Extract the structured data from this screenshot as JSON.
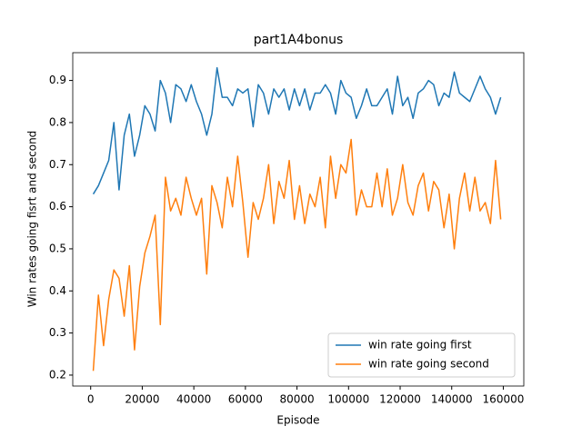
{
  "chart_data": {
    "type": "line",
    "title": "part1A4bonus",
    "x_label": "Episode",
    "y_label": "Win rates going fisrt and second",
    "x": [
      1000,
      3000,
      5000,
      7000,
      9000,
      11000,
      13000,
      15000,
      17000,
      19000,
      21000,
      23000,
      25000,
      27000,
      29000,
      31000,
      33000,
      35000,
      37000,
      39000,
      41000,
      43000,
      45000,
      47000,
      49000,
      51000,
      53000,
      55000,
      57000,
      59000,
      61000,
      63000,
      65000,
      67000,
      69000,
      71000,
      73000,
      75000,
      77000,
      79000,
      81000,
      83000,
      85000,
      87000,
      89000,
      91000,
      93000,
      95000,
      97000,
      99000,
      101000,
      103000,
      105000,
      107000,
      109000,
      111000,
      113000,
      115000,
      117000,
      119000,
      121000,
      123000,
      125000,
      127000,
      129000,
      131000,
      133000,
      135000,
      137000,
      139000,
      141000,
      143000,
      145000,
      147000,
      149000,
      151000,
      153000,
      155000,
      157000,
      159000
    ],
    "series": [
      {
        "name": "win rate going first",
        "color": "#1f77b4",
        "values": [
          0.63,
          0.65,
          0.68,
          0.71,
          0.8,
          0.64,
          0.77,
          0.82,
          0.72,
          0.77,
          0.84,
          0.82,
          0.78,
          0.9,
          0.87,
          0.8,
          0.89,
          0.88,
          0.85,
          0.89,
          0.85,
          0.82,
          0.77,
          0.82,
          0.93,
          0.86,
          0.86,
          0.84,
          0.88,
          0.87,
          0.88,
          0.79,
          0.89,
          0.87,
          0.82,
          0.88,
          0.86,
          0.88,
          0.83,
          0.88,
          0.84,
          0.88,
          0.83,
          0.87,
          0.87,
          0.89,
          0.87,
          0.82,
          0.9,
          0.87,
          0.86,
          0.81,
          0.84,
          0.88,
          0.84,
          0.84,
          0.86,
          0.88,
          0.82,
          0.91,
          0.84,
          0.86,
          0.81,
          0.87,
          0.88,
          0.9,
          0.89,
          0.84,
          0.87,
          0.86,
          0.92,
          0.87,
          0.86,
          0.85,
          0.88,
          0.91,
          0.88,
          0.86,
          0.82,
          0.86
        ]
      },
      {
        "name": "win rate going second",
        "color": "#ff7f0e",
        "values": [
          0.21,
          0.39,
          0.27,
          0.38,
          0.45,
          0.43,
          0.34,
          0.46,
          0.26,
          0.41,
          0.49,
          0.53,
          0.58,
          0.32,
          0.67,
          0.59,
          0.62,
          0.58,
          0.67,
          0.62,
          0.58,
          0.62,
          0.44,
          0.65,
          0.61,
          0.55,
          0.67,
          0.6,
          0.72,
          0.61,
          0.48,
          0.61,
          0.57,
          0.62,
          0.7,
          0.56,
          0.66,
          0.62,
          0.71,
          0.57,
          0.65,
          0.56,
          0.63,
          0.6,
          0.67,
          0.55,
          0.72,
          0.62,
          0.7,
          0.68,
          0.76,
          0.58,
          0.64,
          0.6,
          0.6,
          0.68,
          0.6,
          0.69,
          0.58,
          0.62,
          0.7,
          0.61,
          0.58,
          0.65,
          0.68,
          0.59,
          0.66,
          0.64,
          0.55,
          0.63,
          0.5,
          0.62,
          0.68,
          0.59,
          0.67,
          0.59,
          0.61,
          0.56,
          0.71,
          0.57
        ]
      }
    ],
    "xlim": [
      -6950,
      167950
    ],
    "ylim": [
      0.174,
      0.966
    ],
    "xticks": [
      0,
      20000,
      40000,
      60000,
      80000,
      100000,
      120000,
      140000,
      160000
    ],
    "yticks": [
      0.2,
      0.3,
      0.4,
      0.5,
      0.6,
      0.7,
      0.8,
      0.9
    ],
    "legend": "lower right"
  }
}
